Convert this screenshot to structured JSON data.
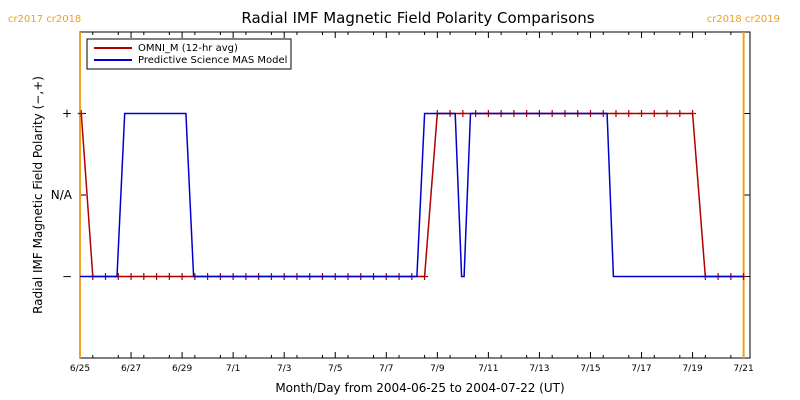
{
  "chart_data": {
    "type": "line",
    "title": "Radial IMF Magnetic Field Polarity Comparisons",
    "xlabel": "Month/Day from 2004-06-25 to 2004-07-22 (UT)",
    "ylabel": "Radial IMF Magnetic Field Polarity (−,+)",
    "x_tick_labels": [
      "6/25",
      "6/27",
      "6/29",
      "7/1",
      "7/3",
      "7/5",
      "7/7",
      "7/9",
      "7/11",
      "7/13",
      "7/15",
      "7/17",
      "7/19",
      "7/21"
    ],
    "x_tick_days": [
      0,
      2,
      4,
      6,
      8,
      10,
      12,
      14,
      16,
      18,
      20,
      22,
      24,
      26
    ],
    "y_tick_labels": [
      "−",
      "N/A",
      "+"
    ],
    "y_tick_values": [
      -1,
      0,
      1
    ],
    "xlim": [
      0,
      26.25
    ],
    "ylim": [
      -2,
      2
    ],
    "rotation_markers": {
      "left": "cr2017 cr2018",
      "right": "cr2018 cr2019",
      "boundary_days": [
        0,
        26.0
      ]
    },
    "series": [
      {
        "name": "OMNI_M (12-hr avg)",
        "color": "#b00000",
        "marker": "+",
        "points": [
          [
            0.05,
            1
          ],
          [
            0.5,
            -1
          ],
          [
            1.0,
            -1
          ],
          [
            1.5,
            -1
          ],
          [
            2.0,
            -1
          ],
          [
            2.5,
            -1
          ],
          [
            3.0,
            -1
          ],
          [
            3.5,
            -1
          ],
          [
            4.0,
            -1
          ],
          [
            4.5,
            -1
          ],
          [
            5.0,
            -1
          ],
          [
            5.5,
            -1
          ],
          [
            6.0,
            -1
          ],
          [
            6.5,
            -1
          ],
          [
            7.0,
            -1
          ],
          [
            7.5,
            -1
          ],
          [
            8.0,
            -1
          ],
          [
            8.5,
            -1
          ],
          [
            9.0,
            -1
          ],
          [
            9.5,
            -1
          ],
          [
            10.0,
            -1
          ],
          [
            10.5,
            -1
          ],
          [
            11.0,
            -1
          ],
          [
            11.5,
            -1
          ],
          [
            12.0,
            -1
          ],
          [
            12.5,
            -1
          ],
          [
            13.0,
            -1
          ],
          [
            13.5,
            -1
          ],
          [
            14.0,
            1
          ],
          [
            14.5,
            1
          ],
          [
            15.0,
            1
          ],
          [
            15.5,
            1
          ],
          [
            16.0,
            1
          ],
          [
            16.5,
            1
          ],
          [
            17.0,
            1
          ],
          [
            17.5,
            1
          ],
          [
            18.0,
            1
          ],
          [
            18.5,
            1
          ],
          [
            19.0,
            1
          ],
          [
            19.5,
            1
          ],
          [
            20.0,
            1
          ],
          [
            20.5,
            1
          ],
          [
            21.0,
            1
          ],
          [
            21.5,
            1
          ],
          [
            22.0,
            1
          ],
          [
            22.5,
            1
          ],
          [
            23.0,
            1
          ],
          [
            23.5,
            1
          ],
          [
            24.0,
            1
          ],
          [
            24.5,
            -1
          ],
          [
            25.0,
            -1
          ],
          [
            25.5,
            -1
          ],
          [
            26.0,
            -1
          ]
        ]
      },
      {
        "name": "Predictive Science MAS Model",
        "color": "#0000cc",
        "marker": "",
        "points": [
          [
            0.0,
            -1
          ],
          [
            1.45,
            -1
          ],
          [
            1.75,
            1
          ],
          [
            4.15,
            1
          ],
          [
            4.45,
            -1
          ],
          [
            13.2,
            -1
          ],
          [
            13.5,
            1
          ],
          [
            14.7,
            1
          ],
          [
            14.95,
            -1
          ],
          [
            15.05,
            -1
          ],
          [
            15.3,
            1
          ],
          [
            20.65,
            1
          ],
          [
            20.9,
            -1
          ],
          [
            26.0,
            -1
          ]
        ]
      }
    ]
  }
}
